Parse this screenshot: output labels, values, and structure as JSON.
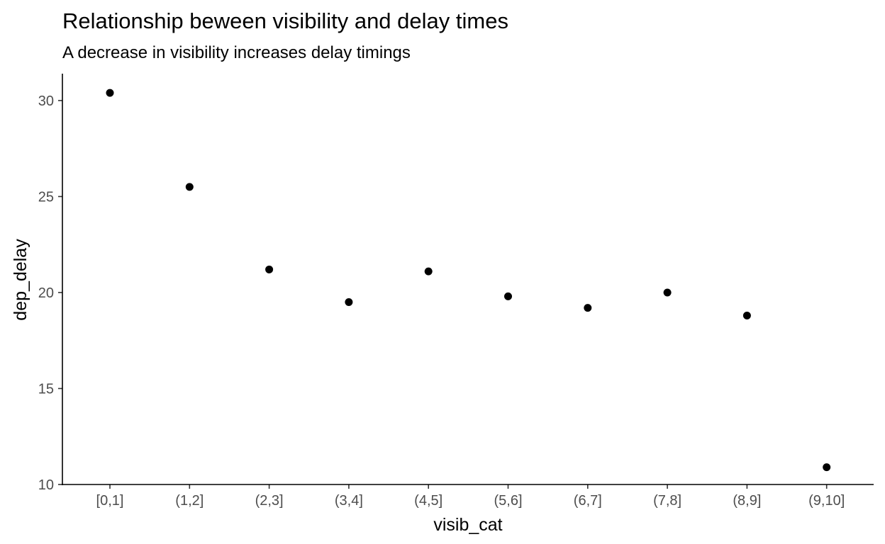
{
  "chart_data": {
    "type": "scatter",
    "title": "Relationship beween visibility and delay times",
    "subtitle": "A decrease in visibility increases delay timings",
    "xlabel": "visib_cat",
    "ylabel": "dep_delay",
    "categories": [
      "[0,1]",
      "(1,2]",
      "(2,3]",
      "(3,4]",
      "(4,5]",
      "(5,6]",
      "(6,7]",
      "(7,8]",
      "(8,9]",
      "(9,10]"
    ],
    "values": [
      30.4,
      25.5,
      21.2,
      19.5,
      21.1,
      19.8,
      19.2,
      20.0,
      18.8,
      10.9
    ],
    "yticks": [
      10,
      15,
      20,
      25,
      30
    ],
    "ylim": [
      10,
      31.4
    ],
    "grid": false,
    "point_color": "#000000"
  }
}
